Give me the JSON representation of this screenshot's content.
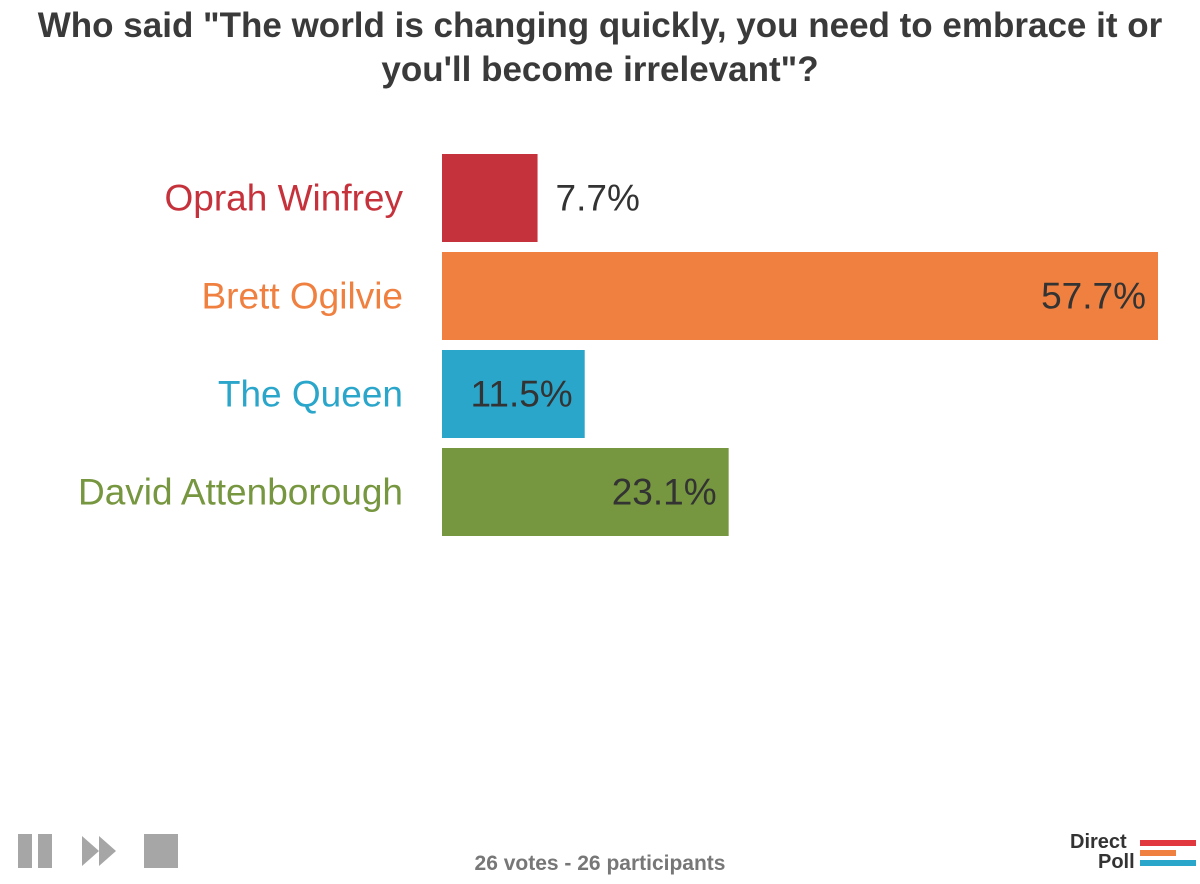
{
  "title": "Who said \"The world is changing quickly, you need to embrace it or you'll become irrelevant\"?",
  "chart_data": {
    "type": "bar",
    "orientation": "horizontal",
    "title": "Who said \"The world is changing quickly, you need to embrace it or you'll become irrelevant\"?",
    "xlabel": "",
    "ylabel": "",
    "unit": "%",
    "xlim": [
      0,
      57.7
    ],
    "grid": false,
    "categories": [
      "Oprah Winfrey",
      "Brett Ogilvie",
      "The Queen",
      "David Attenborough"
    ],
    "values": [
      7.7,
      57.7,
      11.5,
      23.1
    ],
    "value_labels": [
      "7.7%",
      "57.7%",
      "11.5%",
      "23.1%"
    ],
    "colors": [
      "#c6323b",
      "#f08040",
      "#2ba6cb",
      "#76963f"
    ]
  },
  "controls": [
    {
      "name": "pause-icon"
    },
    {
      "name": "fast-forward-icon"
    },
    {
      "name": "stop-icon"
    }
  ],
  "summary": "26 votes - 26 participants",
  "logo": {
    "line1": "Direct",
    "line2": "Poll",
    "colors": [
      "#e0383e",
      "#f08040",
      "#2ba6cb"
    ]
  }
}
